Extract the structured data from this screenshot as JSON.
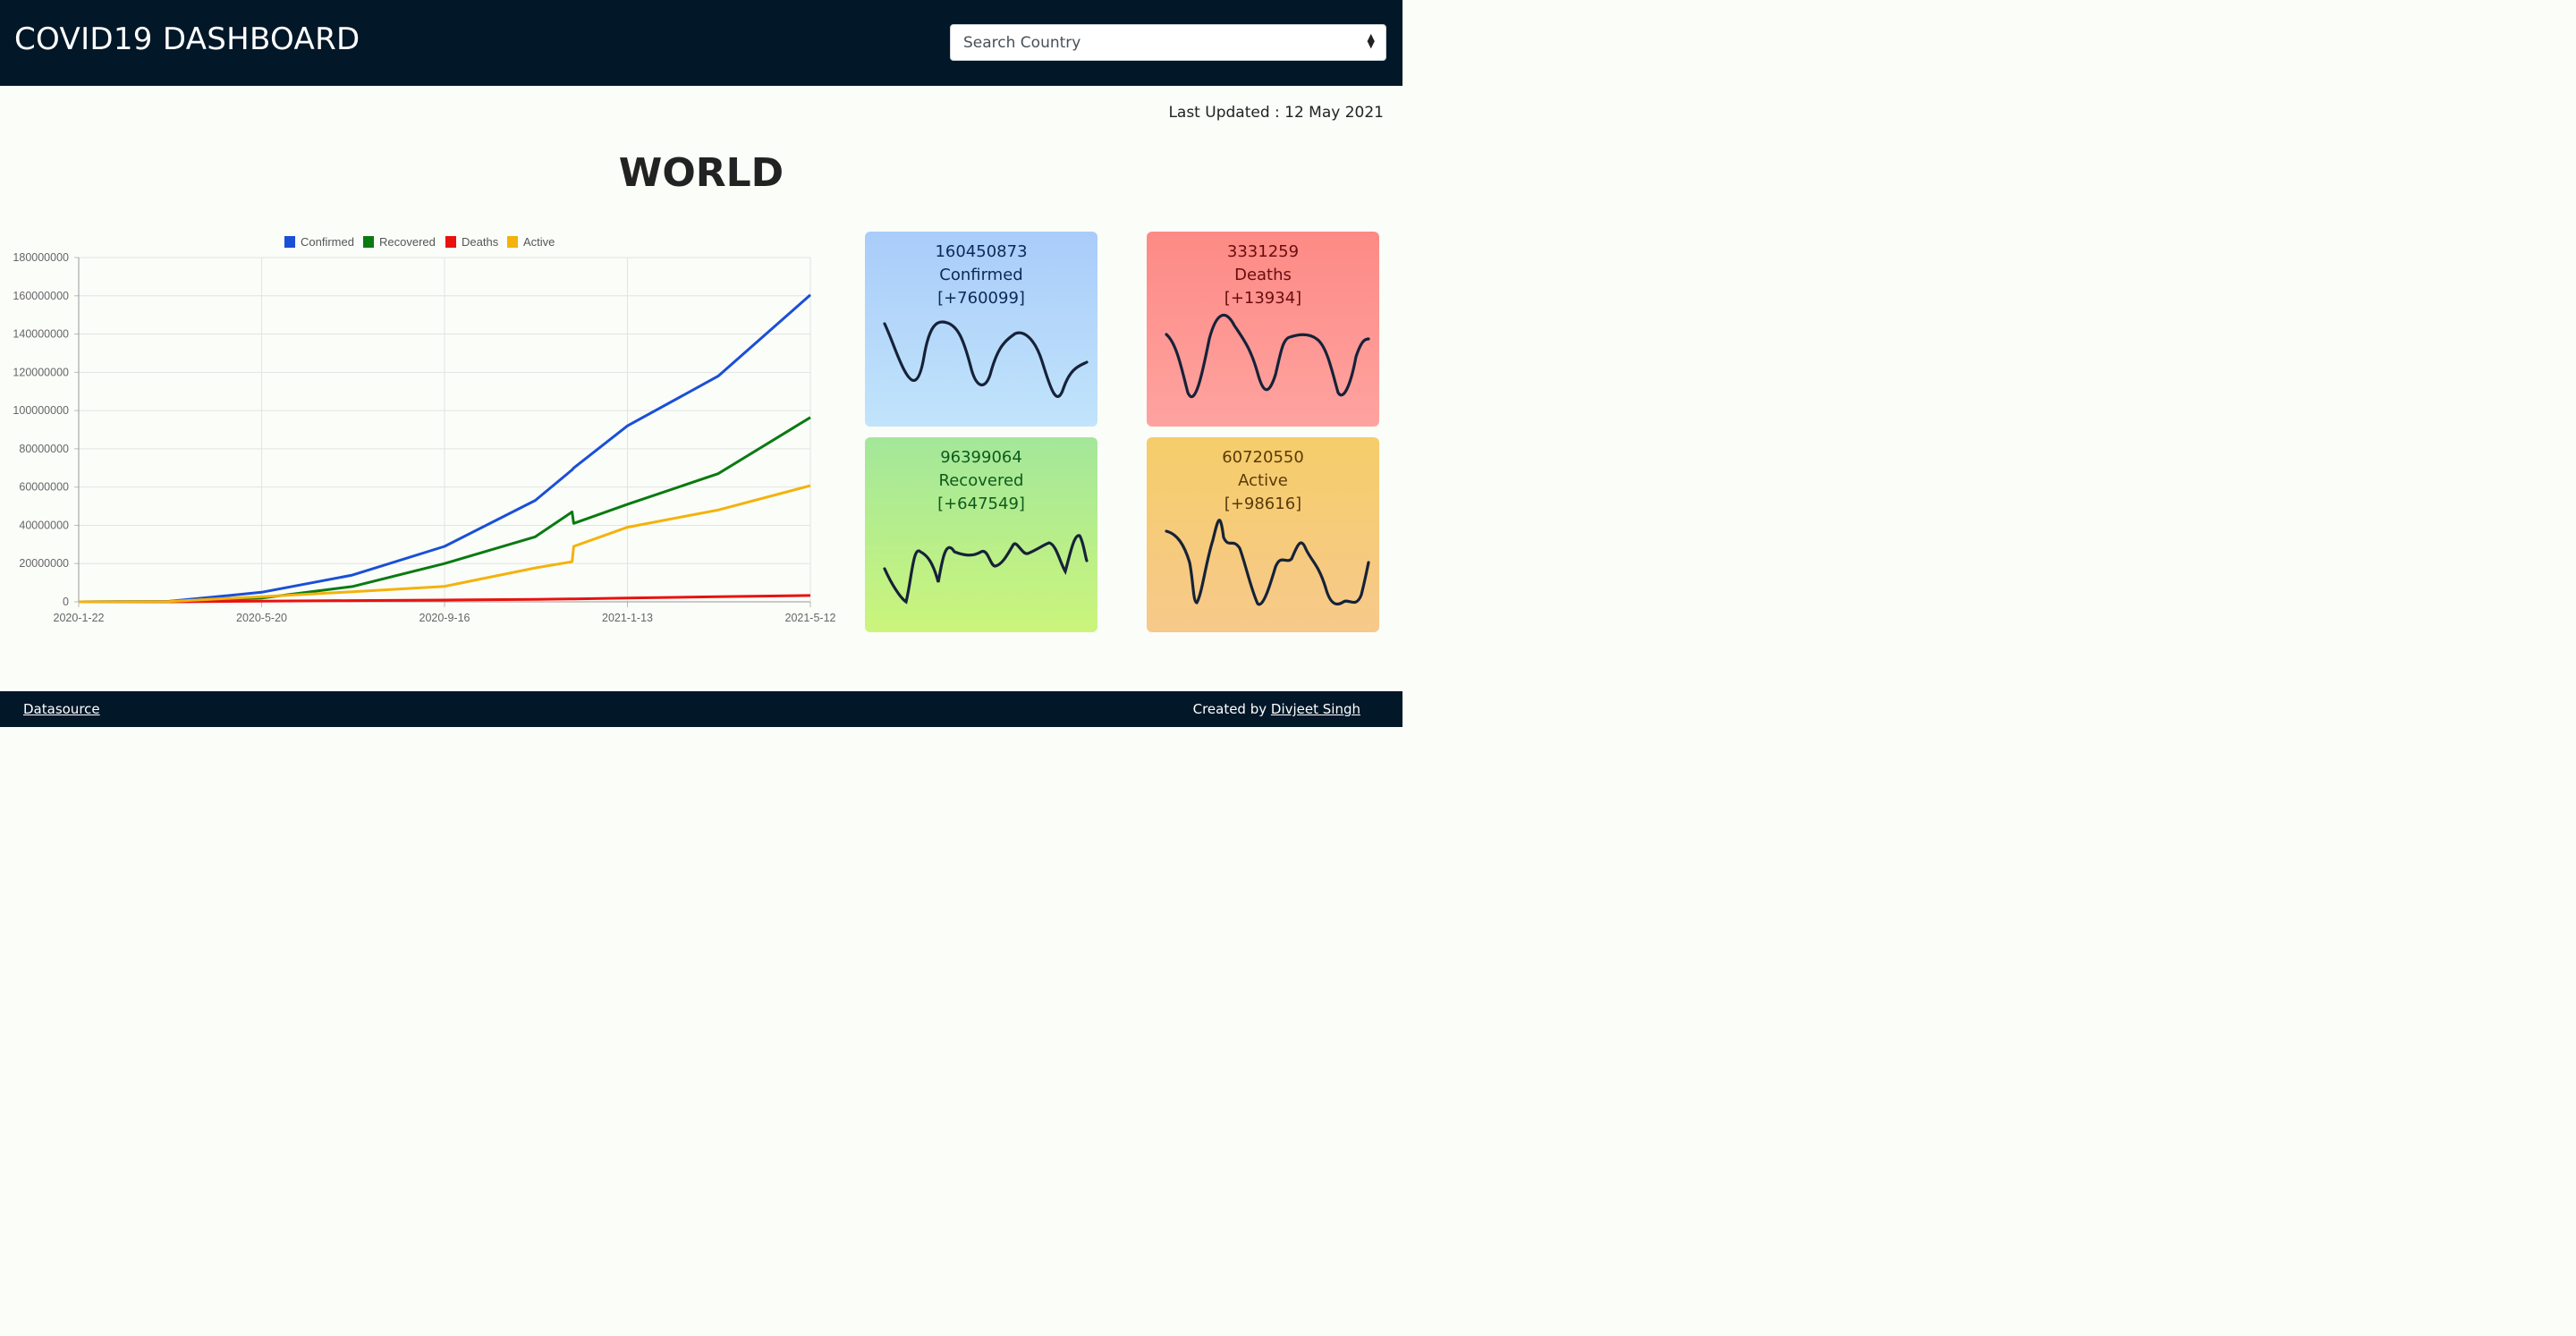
{
  "header": {
    "title": "COVID19 DASHBOARD",
    "search_placeholder": "Search Country"
  },
  "last_updated": "Last Updated : 12 May 2021",
  "region": "WORLD",
  "cards": {
    "confirmed": {
      "count": "160450873",
      "label": "Confirmed",
      "delta": "[+760099]"
    },
    "deaths": {
      "count": "3331259",
      "label": "Deaths",
      "delta": "[+13934]"
    },
    "recovered": {
      "count": "96399064",
      "label": "Recovered",
      "delta": "[+647549]"
    },
    "active": {
      "count": "60720550",
      "label": "Active",
      "delta": "[+98616]"
    }
  },
  "footer": {
    "datasource": "Datasource",
    "created_by": "Created by",
    "author": "Divjeet Singh"
  },
  "colors": {
    "confirmed": "#1a4fd6",
    "recovered": "#0a7a12",
    "deaths": "#e8120f",
    "active": "#f4b20b",
    "header_bg": "#021728"
  },
  "chart_data": {
    "type": "line",
    "x": [
      "2020-1-22",
      "2020-3-21",
      "2020-5-20",
      "2020-7-18",
      "2020-9-16",
      "2020-11-14",
      "2020-12-8",
      "2020-12-9",
      "2021-1-13",
      "2021-3-13",
      "2021-5-12"
    ],
    "x_ticks": [
      "2020-1-22",
      "2020-5-20",
      "2020-9-16",
      "2021-1-13",
      "2021-5-12"
    ],
    "y_ticks": [
      "0",
      "20000000",
      "40000000",
      "60000000",
      "80000000",
      "100000000",
      "120000000",
      "140000000",
      "160000000",
      "180000000"
    ],
    "ylim": [
      0,
      180000000
    ],
    "grid": true,
    "legend_position": "top",
    "series": [
      {
        "name": "Confirmed",
        "values": [
          600,
          300000,
          5000000,
          14000000,
          29000000,
          53000000,
          69000000,
          70000000,
          92000000,
          118000000,
          160450873
        ]
      },
      {
        "name": "Recovered",
        "values": [
          30,
          80000,
          2000000,
          8000000,
          20000000,
          34000000,
          47000000,
          41000000,
          51000000,
          67000000,
          96399064
        ]
      },
      {
        "name": "Deaths",
        "values": [
          17,
          13000,
          330000,
          660000,
          930000,
          1300000,
          1550000,
          1560000,
          1980000,
          2650000,
          3331259
        ]
      },
      {
        "name": "Active",
        "values": [
          550,
          200000,
          2700000,
          5300000,
          8100000,
          17700000,
          21000000,
          29000000,
          39000000,
          48000000,
          60720550
        ]
      }
    ]
  }
}
